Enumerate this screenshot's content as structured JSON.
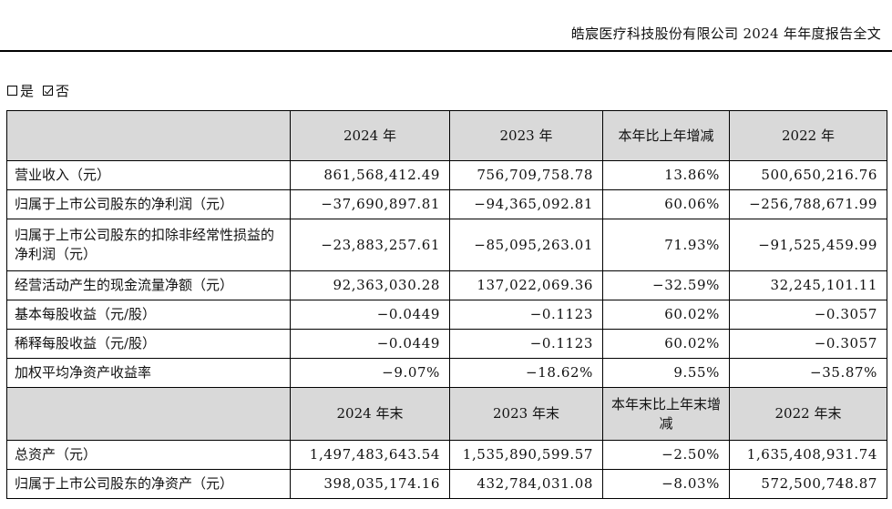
{
  "header": {
    "title": "皓宸医疗科技股份有限公司 2024 年年度报告全文"
  },
  "retro_adjust": {
    "yes_label": "是",
    "no_label": "否",
    "yes_checked": false,
    "no_checked": true
  },
  "table": {
    "header1": [
      "",
      "2024 年",
      "2023 年",
      "本年比上年增减",
      "2022 年"
    ],
    "rows1": [
      {
        "label": "营业收入（元）",
        "v2024": "861,568,412.49",
        "v2023": "756,709,758.78",
        "change": "13.86%",
        "v2022": "500,650,216.76"
      },
      {
        "label": "归属于上市公司股东的净利润（元）",
        "v2024": "−37,690,897.81",
        "v2023": "−94,365,092.81",
        "change": "60.06%",
        "v2022": "−256,788,671.99"
      },
      {
        "label": "归属于上市公司股东的扣除非经常性损益的净利润（元）",
        "v2024": "−23,883,257.61",
        "v2023": "−85,095,263.01",
        "change": "71.93%",
        "v2022": "−91,525,459.99"
      },
      {
        "label": "经营活动产生的现金流量净额（元）",
        "v2024": "92,363,030.28",
        "v2023": "137,022,069.36",
        "change": "−32.59%",
        "v2022": "32,245,101.11"
      },
      {
        "label": "基本每股收益（元/股）",
        "v2024": "−0.0449",
        "v2023": "−0.1123",
        "change": "60.02%",
        "v2022": "−0.3057"
      },
      {
        "label": "稀释每股收益（元/股）",
        "v2024": "−0.0449",
        "v2023": "−0.1123",
        "change": "60.02%",
        "v2022": "−0.3057"
      },
      {
        "label": "加权平均净资产收益率",
        "v2024": "−9.07%",
        "v2023": "−18.62%",
        "change": "9.55%",
        "v2022": "−35.87%"
      }
    ],
    "header2": [
      "",
      "2024 年末",
      "2023 年末",
      "本年末比上年末增减",
      "2022 年末"
    ],
    "rows2": [
      {
        "label": "总资产（元）",
        "v2024": "1,497,483,643.54",
        "v2023": "1,535,890,599.57",
        "change": "−2.50%",
        "v2022": "1,635,408,931.74"
      },
      {
        "label": "归属于上市公司股东的净资产（元）",
        "v2024": "398,035,174.16",
        "v2023": "432,784,031.08",
        "change": "−8.03%",
        "v2022": "572,500,748.87"
      }
    ]
  }
}
